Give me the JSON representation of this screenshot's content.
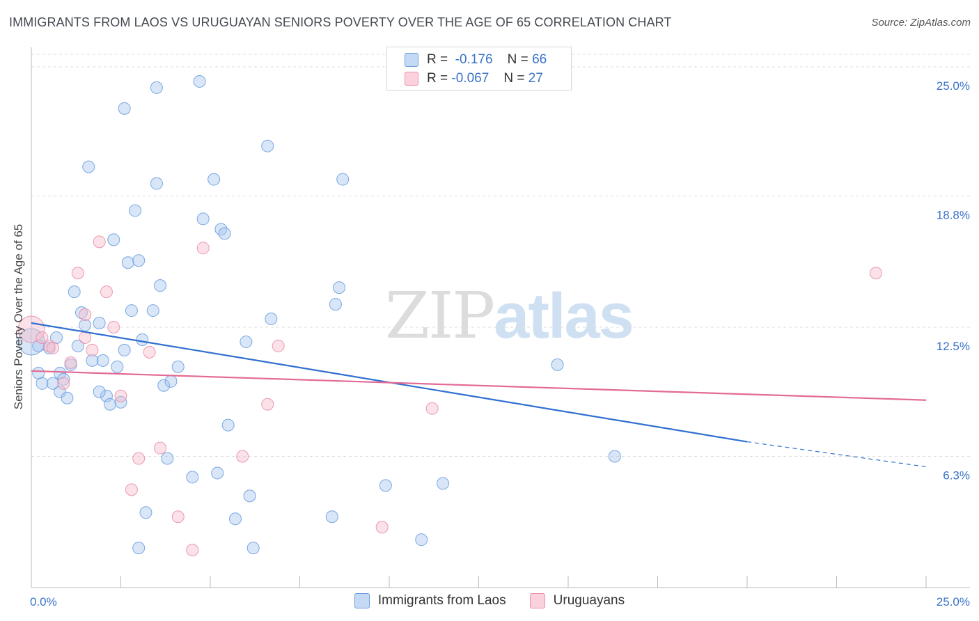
{
  "title": "IMMIGRANTS FROM LAOS VS URUGUAYAN SENIORS POVERTY OVER THE AGE OF 65 CORRELATION CHART",
  "source": "Source: ZipAtlas.com",
  "watermark": {
    "zip": "ZIP",
    "atlas": "atlas"
  },
  "legend": {
    "rows": [
      {
        "r_label": "R =",
        "r_value": "-0.176",
        "n_label": "N =",
        "n_value": "66"
      },
      {
        "r_label": "R =",
        "r_value": "-0.067",
        "n_label": "N =",
        "n_value": "27"
      }
    ]
  },
  "colors": {
    "blue_fill": "#a9c8ef",
    "blue_stroke": "#6d9ee0",
    "blue_line": "#2f6fd0",
    "pink_fill": "#f6bccb",
    "pink_stroke": "#ea8fa9",
    "pink_line": "#e36a93",
    "tick_label": "#3a72c8",
    "grid": "#dcdcdc"
  },
  "chart_data": {
    "type": "scatter",
    "title": "IMMIGRANTS FROM LAOS VS URUGUAYAN SENIORS POVERTY OVER THE AGE OF 65 CORRELATION CHART",
    "xlabel": "",
    "ylabel": "Seniors Poverty Over the Age of 65",
    "xlim": [
      0,
      25
    ],
    "ylim": [
      0,
      25
    ],
    "x_tick_labels": [
      "0.0%",
      "25.0%"
    ],
    "y_ticks": [
      {
        "value": 6.3,
        "label": "6.3%"
      },
      {
        "value": 12.5,
        "label": "12.5%"
      },
      {
        "value": 18.8,
        "label": "18.8%"
      },
      {
        "value": 25.0,
        "label": "25.0%"
      }
    ],
    "grid": true,
    "legend_position": "top-center",
    "series": [
      {
        "name": "Immigrants from Laos",
        "color": "blue",
        "trend": {
          "x0": 0.0,
          "y0": 12.7,
          "x1": 20.0,
          "y1": 7.0,
          "dash_to_x": 25.0,
          "dash_to_y": 5.8
        },
        "points": [
          {
            "x": 0.0,
            "y": 11.8,
            "big": true
          },
          {
            "x": 0.2,
            "y": 10.3
          },
          {
            "x": 0.3,
            "y": 9.8
          },
          {
            "x": 0.5,
            "y": 11.5
          },
          {
            "x": 0.6,
            "y": 9.8
          },
          {
            "x": 0.7,
            "y": 12.0
          },
          {
            "x": 0.8,
            "y": 10.3
          },
          {
            "x": 0.8,
            "y": 9.4
          },
          {
            "x": 0.9,
            "y": 10.0
          },
          {
            "x": 1.0,
            "y": 9.1
          },
          {
            "x": 1.1,
            "y": 10.7
          },
          {
            "x": 1.2,
            "y": 14.2
          },
          {
            "x": 1.3,
            "y": 11.6
          },
          {
            "x": 1.4,
            "y": 13.2
          },
          {
            "x": 1.5,
            "y": 12.6
          },
          {
            "x": 1.6,
            "y": 20.2
          },
          {
            "x": 1.7,
            "y": 10.9
          },
          {
            "x": 1.9,
            "y": 12.7
          },
          {
            "x": 2.0,
            "y": 10.9
          },
          {
            "x": 2.1,
            "y": 9.2
          },
          {
            "x": 2.2,
            "y": 8.8
          },
          {
            "x": 2.3,
            "y": 16.7
          },
          {
            "x": 2.4,
            "y": 10.6
          },
          {
            "x": 2.5,
            "y": 8.9
          },
          {
            "x": 2.6,
            "y": 11.4
          },
          {
            "x": 2.7,
            "y": 15.6
          },
          {
            "x": 2.8,
            "y": 13.3
          },
          {
            "x": 2.9,
            "y": 18.1
          },
          {
            "x": 3.0,
            "y": 15.7
          },
          {
            "x": 3.1,
            "y": 11.9
          },
          {
            "x": 3.2,
            "y": 3.6
          },
          {
            "x": 3.4,
            "y": 13.3
          },
          {
            "x": 3.5,
            "y": 19.4
          },
          {
            "x": 3.6,
            "y": 14.5
          },
          {
            "x": 3.7,
            "y": 9.7
          },
          {
            "x": 3.8,
            "y": 6.2
          },
          {
            "x": 3.9,
            "y": 9.9
          },
          {
            "x": 4.1,
            "y": 10.6
          },
          {
            "x": 4.5,
            "y": 5.3
          },
          {
            "x": 4.8,
            "y": 17.7
          },
          {
            "x": 5.1,
            "y": 19.6
          },
          {
            "x": 5.2,
            "y": 5.5
          },
          {
            "x": 5.3,
            "y": 17.2
          },
          {
            "x": 5.4,
            "y": 17.0
          },
          {
            "x": 5.5,
            "y": 7.8
          },
          {
            "x": 5.7,
            "y": 3.3
          },
          {
            "x": 6.0,
            "y": 11.8
          },
          {
            "x": 6.1,
            "y": 4.4
          },
          {
            "x": 6.2,
            "y": 1.9
          },
          {
            "x": 6.6,
            "y": 21.2
          },
          {
            "x": 6.7,
            "y": 12.9
          },
          {
            "x": 8.4,
            "y": 3.4
          },
          {
            "x": 8.5,
            "y": 13.6
          },
          {
            "x": 8.6,
            "y": 14.4
          },
          {
            "x": 8.7,
            "y": 19.6
          },
          {
            "x": 9.9,
            "y": 4.9
          },
          {
            "x": 10.9,
            "y": 2.3
          },
          {
            "x": 11.5,
            "y": 5.0
          },
          {
            "x": 14.7,
            "y": 10.7
          },
          {
            "x": 16.3,
            "y": 6.3
          },
          {
            "x": 3.5,
            "y": 24.0
          },
          {
            "x": 4.7,
            "y": 24.3
          },
          {
            "x": 2.6,
            "y": 23.0
          },
          {
            "x": 3.0,
            "y": 1.9
          },
          {
            "x": 1.9,
            "y": 9.4
          },
          {
            "x": 0.2,
            "y": 11.6
          }
        ]
      },
      {
        "name": "Uruguayans",
        "color": "pink",
        "trend": {
          "x0": 0.0,
          "y0": 10.4,
          "x1": 25.0,
          "y1": 9.0
        },
        "points": [
          {
            "x": 0.0,
            "y": 12.4,
            "big": true
          },
          {
            "x": 0.3,
            "y": 12.0
          },
          {
            "x": 0.5,
            "y": 11.6
          },
          {
            "x": 0.6,
            "y": 11.5
          },
          {
            "x": 0.9,
            "y": 9.8
          },
          {
            "x": 1.1,
            "y": 10.8
          },
          {
            "x": 1.3,
            "y": 15.1
          },
          {
            "x": 1.5,
            "y": 13.1
          },
          {
            "x": 1.5,
            "y": 12.0
          },
          {
            "x": 1.7,
            "y": 11.4
          },
          {
            "x": 1.9,
            "y": 16.6
          },
          {
            "x": 2.1,
            "y": 14.2
          },
          {
            "x": 2.3,
            "y": 12.5
          },
          {
            "x": 2.5,
            "y": 9.2
          },
          {
            "x": 2.8,
            "y": 4.7
          },
          {
            "x": 3.0,
            "y": 6.2
          },
          {
            "x": 3.3,
            "y": 11.3
          },
          {
            "x": 3.6,
            "y": 6.7
          },
          {
            "x": 4.1,
            "y": 3.4
          },
          {
            "x": 4.5,
            "y": 1.8
          },
          {
            "x": 4.8,
            "y": 16.3
          },
          {
            "x": 5.9,
            "y": 6.3
          },
          {
            "x": 6.6,
            "y": 8.8
          },
          {
            "x": 6.9,
            "y": 11.6
          },
          {
            "x": 9.8,
            "y": 2.9
          },
          {
            "x": 11.2,
            "y": 8.6
          },
          {
            "x": 23.6,
            "y": 15.1
          }
        ]
      }
    ]
  }
}
